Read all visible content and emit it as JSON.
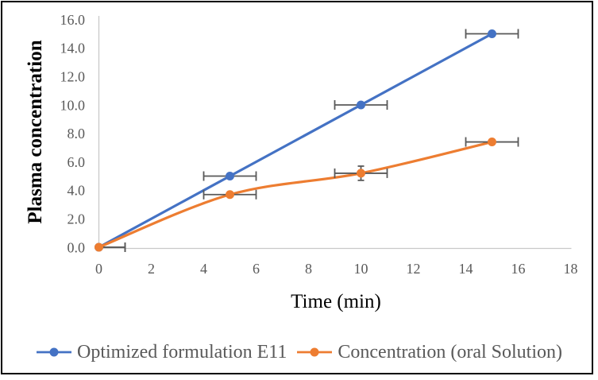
{
  "chart_data": {
    "type": "line",
    "title": "",
    "xlabel": "Time (min)",
    "ylabel": "Plasma concentration",
    "xlim": [
      0,
      18
    ],
    "ylim": [
      0,
      16
    ],
    "x_ticks": [
      0,
      2,
      4,
      6,
      8,
      10,
      12,
      14,
      16,
      18
    ],
    "y_tick_labels": [
      "0.0",
      "2.0",
      "4.0",
      "6.0",
      "8.0",
      "10.0",
      "12.0",
      "14.0",
      "16.0"
    ],
    "grid": false,
    "legend_position": "bottom",
    "marker": "circle",
    "series": [
      {
        "name": "Optimized formulation E11",
        "color": "#4472C4",
        "x": [
          0,
          5,
          10,
          15
        ],
        "y": [
          0.0,
          5.0,
          10.0,
          15.0
        ],
        "xerr": [
          1,
          1,
          1,
          1
        ],
        "yerr": [
          0,
          0,
          0,
          0
        ]
      },
      {
        "name": "Concentration (oral Solution)",
        "color": "#ED7D31",
        "x": [
          0,
          5,
          10,
          15
        ],
        "y": [
          0.0,
          3.7,
          5.2,
          7.4
        ],
        "xerr": [
          1,
          1,
          1,
          1
        ],
        "yerr": [
          0,
          0,
          0.5,
          0
        ]
      }
    ],
    "colors": {
      "axis_line": "#C9C9C9",
      "tick_label": "#595959",
      "error_bar": "#595959",
      "legend_text": "#595959",
      "axis_title": "#000000",
      "frame_border": "#000000"
    }
  },
  "legend": {
    "items": [
      {
        "label": "Optimized formulation E11",
        "color": "#4472C4"
      },
      {
        "label": "Concentration (oral Solution)",
        "color": "#ED7D31"
      }
    ]
  }
}
